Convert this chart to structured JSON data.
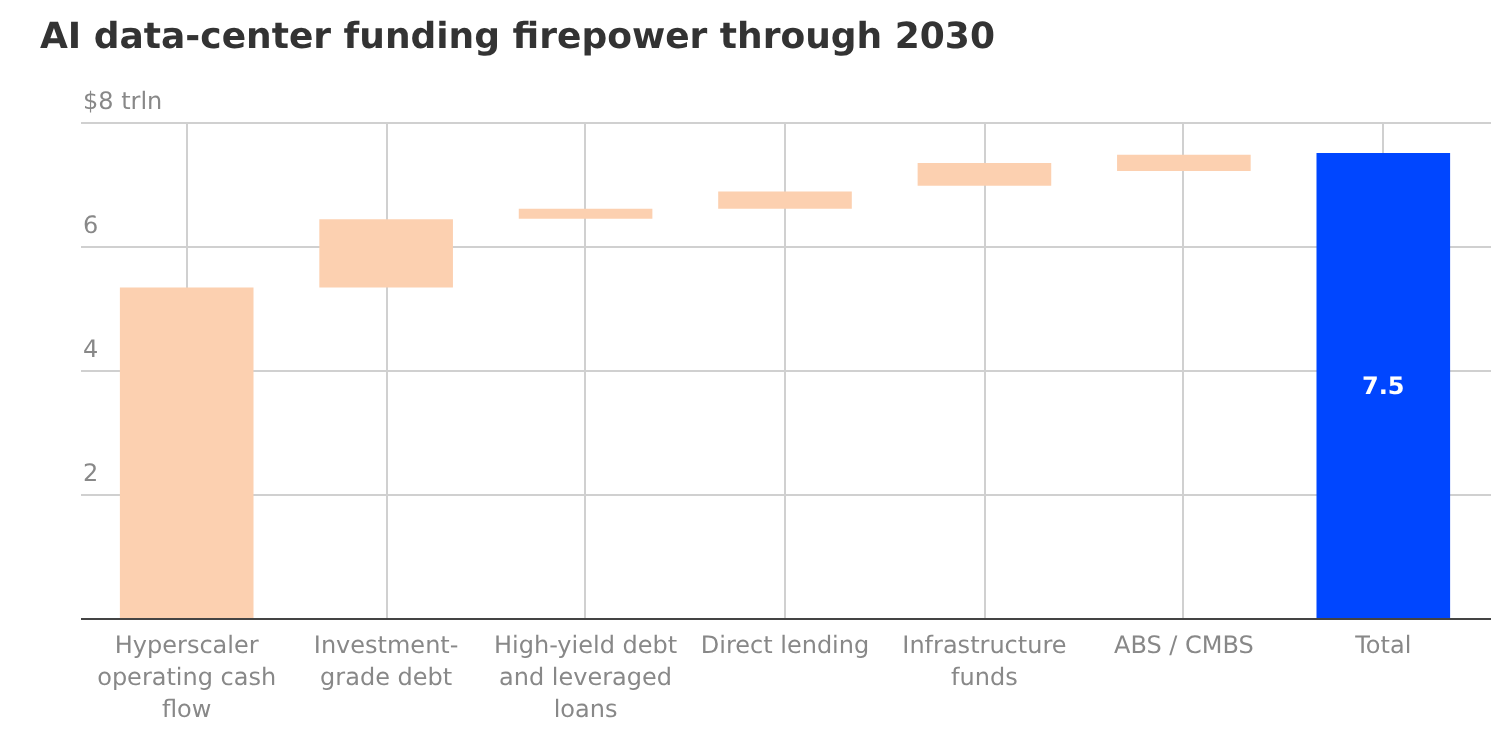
{
  "chart_data": {
    "type": "bar",
    "title": "AI data-center funding firepower through 2030",
    "categories": [
      "Hyperscaler operating cash flow",
      "Investment-grade debt",
      "High-yield debt and leveraged loans",
      "Direct lending",
      "Infrastructure funds",
      "ABS / CMBS",
      "Total"
    ],
    "values": [
      5.33,
      1.1,
      0.16,
      0.28,
      0.37,
      0.26,
      7.5
    ],
    "base": [
      0,
      5.33,
      6.44,
      6.6,
      6.97,
      7.21,
      0
    ],
    "colors": [
      "#fcd0b0",
      "#fcd0b0",
      "#fcd0b0",
      "#fcd0b0",
      "#fcd0b0",
      "#fcd0b0",
      "#0046ff"
    ],
    "value_labels": [
      null,
      null,
      null,
      null,
      null,
      null,
      "7.5"
    ],
    "ylim": [
      0,
      8
    ],
    "yticks": [
      {
        "value": 0,
        "label": null
      },
      2,
      4,
      6,
      {
        "value": 8,
        "label": "$8 trln"
      }
    ],
    "grid": true
  }
}
